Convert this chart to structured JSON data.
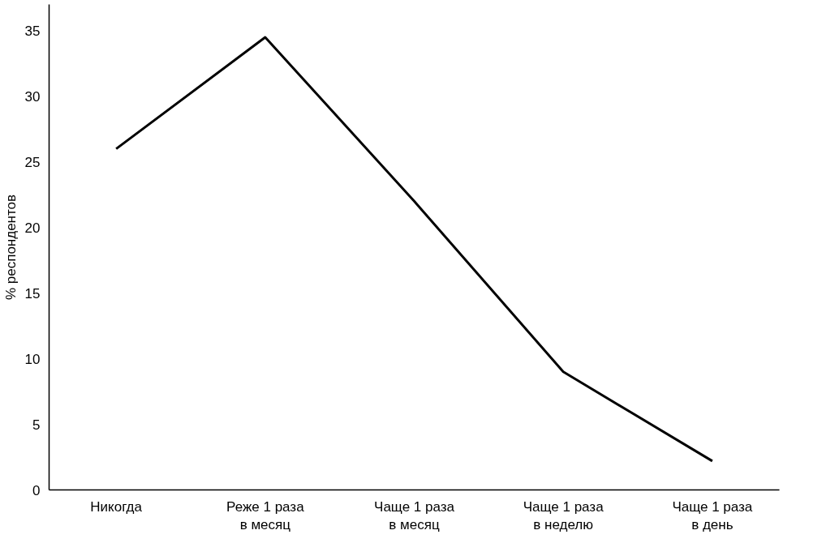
{
  "chart_data": {
    "type": "line",
    "ylabel": "% респондентов",
    "categories": [
      "Никогда",
      "Реже 1 раза\nв месяц",
      "Чаще 1 раза\nв месяц",
      "Чаще 1 раза\nв неделю",
      "Чаще 1 раза\nв день"
    ],
    "series": [
      {
        "color": "#000000",
        "values": [
          26,
          34.5,
          22,
          9,
          2.2
        ]
      }
    ],
    "ylim": [
      0,
      37
    ],
    "yticks": [
      0,
      5,
      10,
      15,
      20,
      25,
      30,
      35
    ],
    "grid": false,
    "marker": "none",
    "line_style": "solid"
  }
}
